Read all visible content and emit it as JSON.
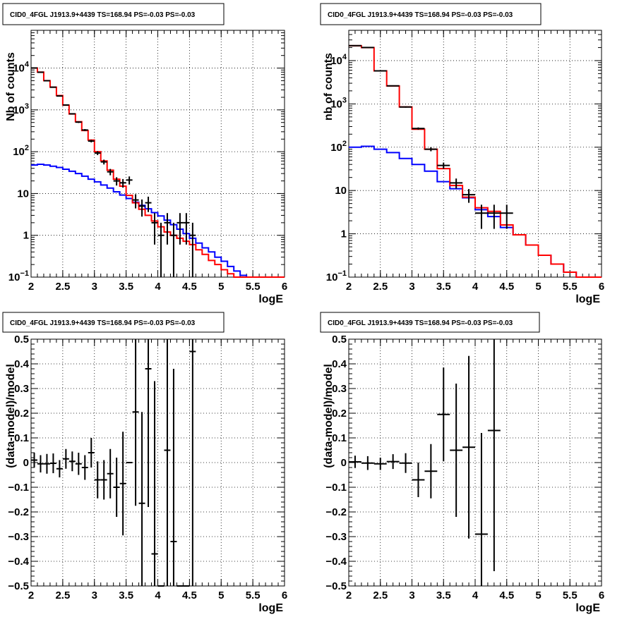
{
  "colors": {
    "model": "#ff0000",
    "background": "#0000ff",
    "data": "#000000",
    "grid": "#000000"
  },
  "chart_data": [
    {
      "type": "line",
      "title": "CID0_4FGL J1913.9+4439 TS=168.94 PS=-0.03 PS=-0.03",
      "xlabel": "logE",
      "ylabel": "Nb of counts",
      "yscale": "log",
      "xlim": [
        2,
        6
      ],
      "ylim": [
        0.1,
        80000
      ],
      "xticks": [
        "2",
        "2.5",
        "3",
        "3.5",
        "4",
        "4.5",
        "5",
        "5.5",
        "6"
      ],
      "yticks": [
        "10^-1",
        "1",
        "10",
        "10^2",
        "10^3",
        "10^4"
      ],
      "grid": true,
      "bin_edges": [
        2.0,
        2.1,
        2.2,
        2.3,
        2.4,
        2.5,
        2.6,
        2.7,
        2.8,
        2.9,
        3.0,
        3.1,
        3.2,
        3.3,
        3.4,
        3.5,
        3.6,
        3.7,
        3.8,
        3.9,
        4.0,
        4.1,
        4.2,
        4.3,
        4.4,
        4.5,
        4.6,
        4.7,
        4.8,
        4.9,
        5.0,
        5.1,
        5.2,
        5.3,
        5.4,
        5.5,
        5.6,
        5.7,
        5.8,
        5.9,
        6.0
      ],
      "series": [
        {
          "values": [
            10000,
            8000,
            5000,
            3500,
            2200,
            1300,
            800,
            520,
            320,
            190,
            100,
            60,
            36,
            22,
            15,
            9,
            6,
            4.2,
            3,
            2.2,
            1.6,
            1.2,
            1.0,
            0.85,
            0.72,
            0.6,
            0.45,
            0.35,
            0.25,
            0.2,
            0.15,
            0.12,
            0.1,
            0.09,
            0.09,
            0.09,
            0.09,
            0.09,
            0.09,
            0.09
          ]
        },
        {
          "values": [
            48,
            50,
            48,
            45,
            42,
            38,
            34,
            30,
            26,
            22,
            19,
            16,
            13.5,
            11,
            9.2,
            7.6,
            6.2,
            5.2,
            4.3,
            3.5,
            2.9,
            2.3,
            1.8,
            1.4,
            1.1,
            0.85,
            0.65,
            0.5,
            0.4,
            0.3,
            0.24,
            0.18,
            0.14,
            0.11,
            0.09,
            0.09,
            0.09,
            0.09,
            0.09,
            0.09
          ]
        }
      ],
      "points": [
        {
          "x": 2.05,
          "y": 10050,
          "err": 100
        },
        {
          "x": 2.15,
          "y": 7950,
          "err": 89
        },
        {
          "x": 2.25,
          "y": 4980,
          "err": 71
        },
        {
          "x": 2.35,
          "y": 3490,
          "err": 59
        },
        {
          "x": 2.45,
          "y": 2150,
          "err": 46
        },
        {
          "x": 2.55,
          "y": 1310,
          "err": 36
        },
        {
          "x": 2.65,
          "y": 805,
          "err": 28
        },
        {
          "x": 2.75,
          "y": 510,
          "err": 23
        },
        {
          "x": 2.85,
          "y": 330,
          "err": 18
        },
        {
          "x": 2.95,
          "y": 180,
          "err": 13
        },
        {
          "x": 3.05,
          "y": 93,
          "err": 10
        },
        {
          "x": 3.15,
          "y": 57,
          "err": 7.5
        },
        {
          "x": 3.25,
          "y": 33,
          "err": 5.7
        },
        {
          "x": 3.35,
          "y": 20,
          "err": 4.5
        },
        {
          "x": 3.45,
          "y": 18,
          "err": 4.2
        },
        {
          "x": 3.55,
          "y": 21,
          "err": 4.6
        },
        {
          "x": 3.65,
          "y": 7,
          "err": 2.6
        },
        {
          "x": 3.75,
          "y": 5,
          "err": 2.2
        },
        {
          "x": 3.85,
          "y": 6,
          "err": 2.4
        },
        {
          "x": 3.95,
          "y": 2,
          "err": 1.4
        },
        {
          "x": 4.05,
          "y": 1,
          "err": 1
        },
        {
          "x": 4.15,
          "y": 2,
          "err": 1.4
        },
        {
          "x": 4.25,
          "y": 1,
          "err": 1
        },
        {
          "x": 4.35,
          "y": 2,
          "err": 1.4
        },
        {
          "x": 4.45,
          "y": 2,
          "err": 1.4
        },
        {
          "x": 4.55,
          "y": 1,
          "err": 1
        }
      ]
    },
    {
      "type": "line",
      "title": "CID0_4FGL J1913.9+4439 TS=168.94 PS=-0.03 PS=-0.03",
      "xlabel": "logE",
      "ylabel": "nb of counts",
      "yscale": "log",
      "xlim": [
        2,
        6
      ],
      "ylim": [
        0.1,
        50000
      ],
      "xticks": [
        "2",
        "2.5",
        "3",
        "3.5",
        "4",
        "4.5",
        "5",
        "5.5",
        "6"
      ],
      "yticks": [
        "10^-1",
        "1",
        "10",
        "10^2",
        "10^3",
        "10^4"
      ],
      "grid": true,
      "bin_edges": [
        2.0,
        2.2,
        2.4,
        2.6,
        2.8,
        3.0,
        3.2,
        3.4,
        3.6,
        3.8,
        4.0,
        4.2,
        4.4,
        4.6,
        4.8,
        5.0,
        5.2,
        5.4,
        5.6,
        5.8,
        6.0
      ],
      "series": [
        {
          "values": [
            22000,
            20000,
            5800,
            2600,
            850,
            260,
            90,
            32,
            13,
            7,
            4,
            3.3,
            1.6,
            0.95,
            0.55,
            0.32,
            0.2,
            0.13,
            0.09,
            0.09
          ]
        },
        {
          "values": [
            100,
            105,
            90,
            75,
            55,
            40,
            28,
            16,
            11,
            6.8,
            3.6,
            2.5,
            1.4,
            0.95,
            0.55,
            0.32,
            0.2,
            0.13,
            0.09,
            0.09
          ]
        }
      ],
      "points": [
        {
          "x": 2.1,
          "y": 22100,
          "err": 150
        },
        {
          "x": 2.3,
          "y": 20050,
          "err": 140
        },
        {
          "x": 2.5,
          "y": 5780,
          "err": 76
        },
        {
          "x": 2.7,
          "y": 2610,
          "err": 51
        },
        {
          "x": 2.9,
          "y": 848,
          "err": 29
        },
        {
          "x": 3.1,
          "y": 270,
          "err": 16
        },
        {
          "x": 3.3,
          "y": 90,
          "err": 9.5
        },
        {
          "x": 3.5,
          "y": 38,
          "err": 6.2
        },
        {
          "x": 3.7,
          "y": 15,
          "err": 3.9
        },
        {
          "x": 3.9,
          "y": 8,
          "err": 2.8
        },
        {
          "x": 4.1,
          "y": 3,
          "err": 1.7
        },
        {
          "x": 4.3,
          "y": 3,
          "err": 1.7
        },
        {
          "x": 4.5,
          "y": 3,
          "err": 1.7
        }
      ]
    },
    {
      "type": "scatter",
      "title": "CID0_4FGL J1913.9+4439 TS=168.94 PS=-0.03 PS=-0.03",
      "xlabel": "logE",
      "ylabel": "(data-model)/model",
      "yscale": "linear",
      "xlim": [
        2,
        6
      ],
      "ylim": [
        -0.5,
        0.5
      ],
      "xticks": [
        "2",
        "2.5",
        "3",
        "3.5",
        "4",
        "4.5",
        "5",
        "5.5",
        "6"
      ],
      "yticks": [
        "-0.5",
        "-0.4",
        "-0.3",
        "-0.2",
        "-0.1",
        "0",
        "0.1",
        "0.2",
        "0.3",
        "0.4",
        "0.5"
      ],
      "grid": true,
      "xerr": 0.05,
      "points": [
        {
          "x": 2.05,
          "y": 0.01,
          "err": 0.03
        },
        {
          "x": 2.15,
          "y": -0.005,
          "err": 0.035
        },
        {
          "x": 2.25,
          "y": -0.005,
          "err": 0.04
        },
        {
          "x": 2.35,
          "y": -0.003,
          "err": 0.04
        },
        {
          "x": 2.45,
          "y": -0.025,
          "err": 0.035
        },
        {
          "x": 2.55,
          "y": 0.015,
          "err": 0.04
        },
        {
          "x": 2.65,
          "y": 0.005,
          "err": 0.04
        },
        {
          "x": 2.75,
          "y": -0.005,
          "err": 0.045
        },
        {
          "x": 2.85,
          "y": -0.02,
          "err": 0.05
        },
        {
          "x": 2.95,
          "y": 0.04,
          "err": 0.06
        },
        {
          "x": 3.05,
          "y": -0.07,
          "err": 0.075
        },
        {
          "x": 3.15,
          "y": -0.07,
          "err": 0.08
        },
        {
          "x": 3.25,
          "y": -0.045,
          "err": 0.1
        },
        {
          "x": 3.35,
          "y": -0.1,
          "err": 0.12
        },
        {
          "x": 3.45,
          "y": -0.085,
          "err": 0.21
        },
        {
          "x": 3.55,
          "y": 0.0,
          "err": 0
        },
        {
          "x": 3.65,
          "y": 0.205,
          "err": 0.38
        },
        {
          "x": 3.75,
          "y": -0.165,
          "err": 0.37
        },
        {
          "x": 3.85,
          "y": 0.38,
          "err": 0.56
        },
        {
          "x": 3.95,
          "y": -0.37,
          "err": 0.7
        },
        {
          "x": 4.05,
          "y": -0.5,
          "err": 0
        },
        {
          "x": 4.15,
          "y": 0.05,
          "err": 0.6
        },
        {
          "x": 4.25,
          "y": -0.32,
          "err": 0.7
        },
        {
          "x": 4.35,
          "y": -0.5,
          "err": 0
        },
        {
          "x": 4.45,
          "y": -0.5,
          "err": 0
        },
        {
          "x": 4.55,
          "y": 0.45,
          "err": 0.95
        }
      ]
    },
    {
      "type": "scatter",
      "title": "CID0_4FGL J1913.9+4439 TS=168.94 PS=-0.03 PS=-0.03",
      "xlabel": "logE",
      "ylabel": "(data-model)/model",
      "yscale": "linear",
      "xlim": [
        2,
        6
      ],
      "ylim": [
        -0.5,
        0.5
      ],
      "xticks": [
        "2",
        "2.5",
        "3",
        "3.5",
        "4",
        "4.5",
        "5",
        "5.5",
        "6"
      ],
      "yticks": [
        "-0.5",
        "-0.4",
        "-0.3",
        "-0.2",
        "-0.1",
        "0",
        "0.1",
        "0.2",
        "0.3",
        "0.4",
        "0.5"
      ],
      "grid": true,
      "xerr": 0.1,
      "points": [
        {
          "x": 2.1,
          "y": 0.003,
          "err": 0.025
        },
        {
          "x": 2.3,
          "y": -0.002,
          "err": 0.028
        },
        {
          "x": 2.5,
          "y": -0.005,
          "err": 0.025
        },
        {
          "x": 2.7,
          "y": 0.004,
          "err": 0.03
        },
        {
          "x": 2.9,
          "y": -0.002,
          "err": 0.04
        },
        {
          "x": 3.1,
          "y": -0.07,
          "err": 0.07
        },
        {
          "x": 3.3,
          "y": -0.035,
          "err": 0.11
        },
        {
          "x": 3.5,
          "y": 0.195,
          "err": 0.19
        },
        {
          "x": 3.7,
          "y": 0.05,
          "err": 0.27
        },
        {
          "x": 3.9,
          "y": 0.062,
          "err": 0.37
        },
        {
          "x": 4.1,
          "y": -0.29,
          "err": 0.41
        },
        {
          "x": 4.3,
          "y": 0.13,
          "err": 0.57
        }
      ]
    }
  ]
}
